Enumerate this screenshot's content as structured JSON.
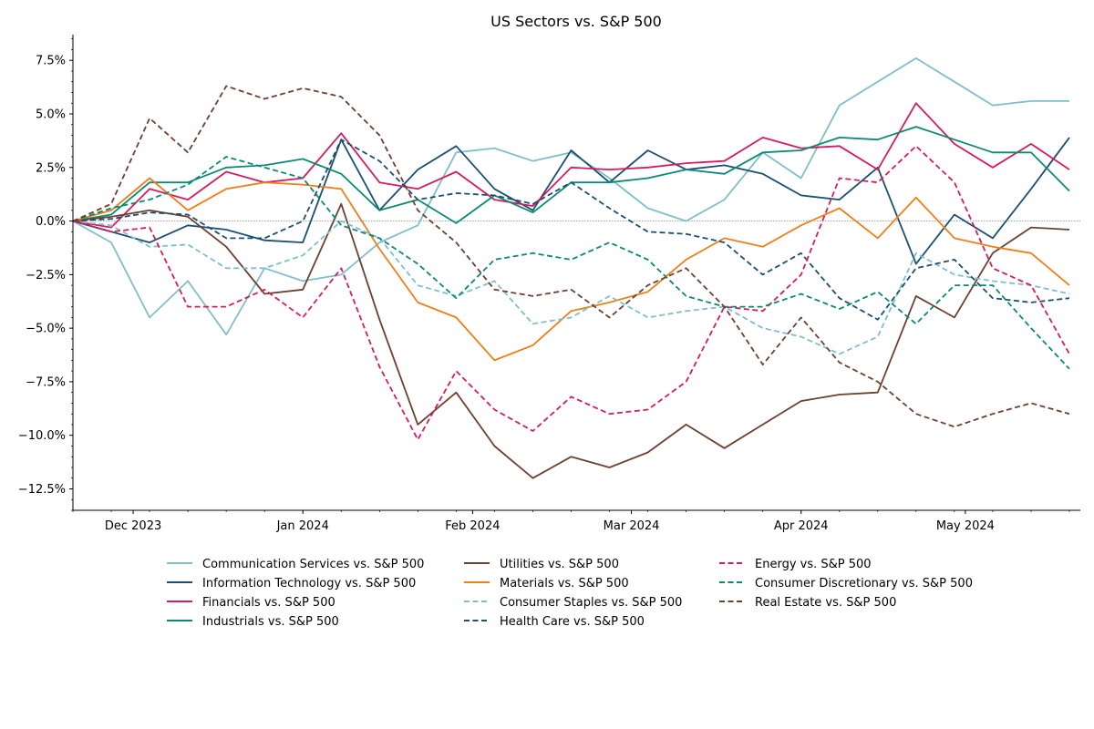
{
  "chart_data": {
    "type": "line",
    "title": "US Sectors vs. S&P 500",
    "xlabel": "",
    "ylabel": "",
    "x_start": "2023-11-20",
    "x_end": "2024-05-22",
    "x_ticks": [
      {
        "date": "2023-12-01",
        "label": "Dec 2023"
      },
      {
        "date": "2024-01-01",
        "label": "Jan 2024"
      },
      {
        "date": "2024-02-01",
        "label": "Feb 2024"
      },
      {
        "date": "2024-03-01",
        "label": "Mar 2024"
      },
      {
        "date": "2024-04-01",
        "label": "Apr 2024"
      },
      {
        "date": "2024-05-01",
        "label": "May 2024"
      }
    ],
    "ylim": [
      -13.5,
      8.7
    ],
    "y_ticks": [
      7.5,
      5.0,
      2.5,
      0.0,
      -2.5,
      -5.0,
      -7.5,
      -10.0,
      -12.5
    ],
    "y_tick_labels": [
      "7.5%",
      "5.0%",
      "2.5%",
      "0.0%",
      "−2.5%",
      "−5.0%",
      "−7.5%",
      "−10.0%",
      "−12.5%"
    ],
    "zero_line": true,
    "legend_position": "below",
    "dates": [
      "2023-11-20",
      "2023-11-27",
      "2023-12-04",
      "2023-12-11",
      "2023-12-18",
      "2023-12-25",
      "2024-01-01",
      "2024-01-08",
      "2024-01-15",
      "2024-01-22",
      "2024-01-29",
      "2024-02-05",
      "2024-02-12",
      "2024-02-19",
      "2024-02-26",
      "2024-03-04",
      "2024-03-11",
      "2024-03-18",
      "2024-03-25",
      "2024-04-01",
      "2024-04-08",
      "2024-04-15",
      "2024-04-22",
      "2024-04-29",
      "2024-05-06",
      "2024-05-13",
      "2024-05-20"
    ],
    "series": [
      {
        "name": "Communication Services vs. S&P 500",
        "color": "#7fbfca",
        "dash": "solid",
        "values": [
          0,
          -1.0,
          -4.5,
          -2.8,
          -5.3,
          -2.2,
          -2.8,
          -2.5,
          -1.0,
          -0.2,
          3.2,
          3.4,
          2.8,
          3.2,
          2.0,
          0.6,
          0.0,
          1.0,
          3.2,
          2.0,
          5.4,
          6.5,
          7.6,
          6.5,
          5.4,
          5.6,
          5.6
        ]
      },
      {
        "name": "Information Technology vs. S&P 500",
        "color": "#1b4f72",
        "dash": "solid",
        "values": [
          0,
          -0.5,
          -1.0,
          -0.2,
          -0.4,
          -0.9,
          -1.0,
          3.8,
          0.5,
          2.4,
          3.5,
          1.5,
          0.5,
          3.3,
          1.8,
          3.3,
          2.4,
          2.6,
          2.2,
          1.2,
          1.0,
          2.5,
          -2.0,
          0.3,
          -0.8,
          1.5,
          3.9
        ]
      },
      {
        "name": "Financials vs. S&P 500",
        "color": "#d81b60",
        "dash": "solid",
        "values": [
          0,
          -0.3,
          1.5,
          1.0,
          2.3,
          1.8,
          2.0,
          4.1,
          1.8,
          1.5,
          2.3,
          1.0,
          0.7,
          2.5,
          2.4,
          2.5,
          2.7,
          2.8,
          3.9,
          3.4,
          3.5,
          2.4,
          5.5,
          3.6,
          2.5,
          3.6,
          2.4
        ]
      },
      {
        "name": "Industrials vs. S&P 500",
        "color": "#0b8a73",
        "dash": "solid",
        "values": [
          0,
          0.3,
          1.8,
          1.8,
          2.5,
          2.6,
          2.9,
          2.2,
          0.5,
          1.0,
          -0.1,
          1.2,
          0.4,
          1.8,
          1.8,
          2.0,
          2.4,
          2.2,
          3.2,
          3.3,
          3.9,
          3.8,
          4.4,
          3.8,
          3.2,
          3.2,
          1.4
        ]
      },
      {
        "name": "Utilities vs. S&P 500",
        "color": "#6d4030",
        "dash": "solid",
        "values": [
          0,
          0.2,
          0.5,
          0.2,
          -1.2,
          -3.4,
          -3.2,
          0.8,
          -4.6,
          -9.5,
          -8.0,
          -10.5,
          -12.0,
          -11.0,
          -11.5,
          -10.8,
          -9.5,
          -10.6,
          -9.5,
          -8.4,
          -8.1,
          -8.0,
          -3.5,
          -4.5,
          -1.5,
          -0.3,
          -0.4
        ]
      },
      {
        "name": "Materials vs. S&P 500",
        "color": "#f07f1a",
        "dash": "solid",
        "values": [
          0,
          0.5,
          2.0,
          0.5,
          1.5,
          1.8,
          1.7,
          1.5,
          -1.3,
          -3.8,
          -4.5,
          -6.5,
          -5.8,
          -4.2,
          -3.8,
          -3.3,
          -1.8,
          -0.8,
          -1.2,
          -0.2,
          0.6,
          -0.8,
          1.1,
          -0.8,
          -1.2,
          -1.5,
          -3.0
        ]
      },
      {
        "name": "Consumer Staples vs. S&P 500",
        "color": "#7fbfca",
        "dash": "dashed",
        "values": [
          0,
          -0.2,
          -1.2,
          -1.1,
          -2.2,
          -2.2,
          -1.6,
          0.0,
          -0.8,
          -3.0,
          -3.5,
          -2.8,
          -4.8,
          -4.5,
          -3.5,
          -4.5,
          -4.2,
          -4.0,
          -5.0,
          -5.4,
          -6.2,
          -5.4,
          -1.5,
          -2.5,
          -2.8,
          -3.0,
          -3.4
        ]
      },
      {
        "name": "Health Care vs. S&P 500",
        "color": "#1b4f72",
        "dash": "dashed",
        "values": [
          0,
          0.1,
          0.4,
          0.3,
          -0.8,
          -0.8,
          0.0,
          3.8,
          2.8,
          1.0,
          1.3,
          1.2,
          0.8,
          1.8,
          0.6,
          -0.5,
          -0.6,
          -1.0,
          -2.5,
          -1.5,
          -3.6,
          -4.6,
          -2.2,
          -1.8,
          -3.6,
          -3.8,
          -3.6
        ]
      },
      {
        "name": "Energy vs. S&P 500",
        "color": "#d81b60",
        "dash": "dashed",
        "values": [
          0,
          -0.5,
          -0.3,
          -4.0,
          -4.0,
          -3.2,
          -4.5,
          -2.2,
          -6.8,
          -10.2,
          -7.0,
          -8.8,
          -9.8,
          -8.2,
          -9.0,
          -8.8,
          -7.5,
          -4.0,
          -4.2,
          -2.5,
          2.0,
          1.8,
          3.5,
          1.8,
          -2.2,
          -3.0,
          -6.2
        ]
      },
      {
        "name": "Consumer Discretionary vs. S&P 500",
        "color": "#0b8a73",
        "dash": "dashed",
        "values": [
          0,
          0.6,
          1.0,
          1.7,
          3.0,
          2.5,
          2.0,
          -0.2,
          -0.8,
          -2.0,
          -3.6,
          -1.8,
          -1.5,
          -1.8,
          -1.0,
          -1.8,
          -3.5,
          -4.0,
          -4.0,
          -3.4,
          -4.1,
          -3.3,
          -4.8,
          -3.0,
          -3.0,
          -5.0,
          -6.9
        ]
      },
      {
        "name": "Real Estate vs. S&P 500",
        "color": "#6d4030",
        "dash": "dashed",
        "values": [
          0,
          0.8,
          4.8,
          3.2,
          6.3,
          5.7,
          6.2,
          5.8,
          4.0,
          0.5,
          -1.0,
          -3.2,
          -3.5,
          -3.2,
          -4.5,
          -3.0,
          -2.2,
          -4.0,
          -6.7,
          -4.5,
          -6.6,
          -7.5,
          -9.0,
          -9.6,
          -9.0,
          -8.5,
          -9.0
        ]
      }
    ]
  }
}
